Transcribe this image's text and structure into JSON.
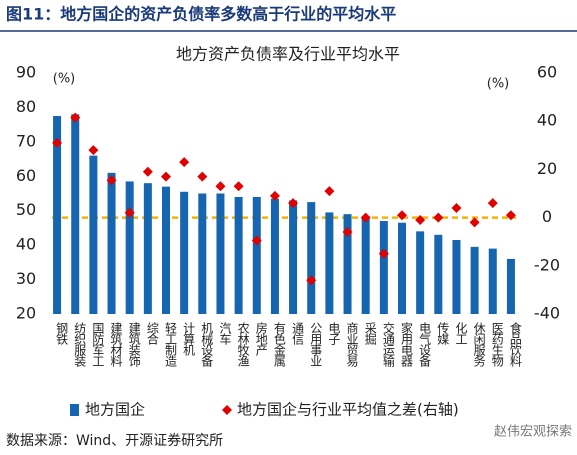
{
  "header": {
    "title": "图11：地方国企的资产负债率多数高于行业的平均水平"
  },
  "chart_data": {
    "type": "bar",
    "title": "地方资产负债率及行业平均水平",
    "y_unit": "(%)",
    "y2_unit": "(%)",
    "categories": [
      "钢铁",
      "纺织服装",
      "国防军工",
      "建筑材料",
      "建筑装饰",
      "综合",
      "轻工制造",
      "计算机",
      "机械设备",
      "汽车",
      "农林牧渔",
      "房地产",
      "有色金属",
      "通信",
      "公用事业",
      "电子",
      "商业贸易",
      "采掘",
      "交通运输",
      "家用电器",
      "电气设备",
      "传媒",
      "化工",
      "休闲服务",
      "医药生物",
      "食品饮料"
    ],
    "series": [
      {
        "name": "地方国企",
        "type": "bar",
        "color": "#1565b0",
        "values": [
          77.5,
          78,
          66,
          61,
          58.5,
          58,
          57,
          55.5,
          55,
          55,
          54,
          54,
          53.5,
          53,
          52.5,
          49.5,
          49,
          48,
          47,
          46.5,
          44,
          43,
          41.5,
          39.5,
          39,
          36
        ]
      },
      {
        "name": "地方国企与行业平均值之差(右轴)",
        "type": "scatter",
        "axis": "y2",
        "color": "#e00000",
        "values": [
          31,
          41.5,
          28,
          15.5,
          2,
          19,
          17,
          23,
          17,
          13,
          13,
          -9.5,
          9,
          6,
          -26,
          11,
          -6,
          0,
          -15,
          1,
          -1,
          0,
          4,
          -2,
          6,
          1
        ]
      }
    ],
    "ylim": [
      20,
      90
    ],
    "yticks": [
      20,
      30,
      40,
      50,
      60,
      70,
      80,
      90
    ],
    "y2lim": [
      -40,
      60
    ],
    "y2ticks": [
      -40,
      -20,
      0,
      20,
      40,
      60
    ],
    "reference_line": {
      "value": 0,
      "axis": "y2",
      "color": "#f5b400"
    },
    "legend": "bottom"
  },
  "footer": {
    "source": "数据来源：Wind、开源证券研究所",
    "watermark": "赵伟宏观探索"
  }
}
